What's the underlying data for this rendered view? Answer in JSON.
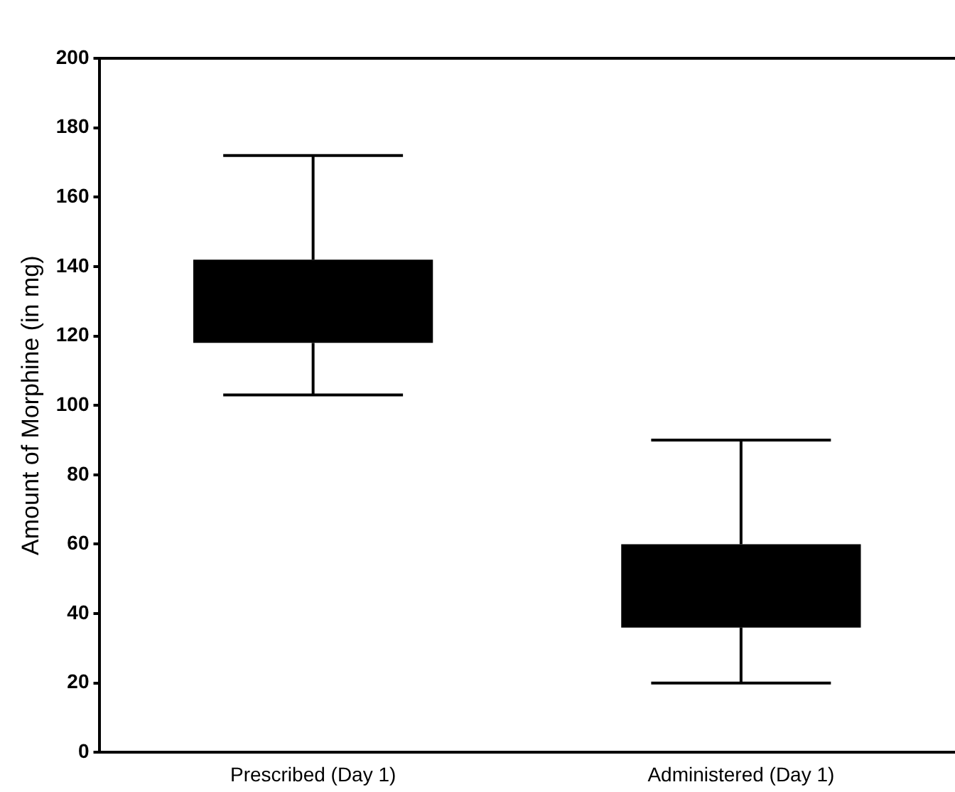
{
  "chart_data": {
    "type": "box",
    "ylabel": "Amount of Morphine (in mg)",
    "categories": [
      "Prescribed (Day 1)",
      "Administered (Day 1)"
    ],
    "color": "#000000",
    "boxes": [
      {
        "low": 103,
        "q1": 118,
        "median": null,
        "q3": 142,
        "high": 172
      },
      {
        "low": 20,
        "q1": 36,
        "median": null,
        "q3": 60,
        "high": 90
      }
    ],
    "ylim": [
      0,
      200
    ],
    "yticks": [
      0,
      20,
      40,
      60,
      80,
      100,
      120,
      140,
      160,
      180,
      200
    ],
    "grid": false,
    "legend": false
  }
}
